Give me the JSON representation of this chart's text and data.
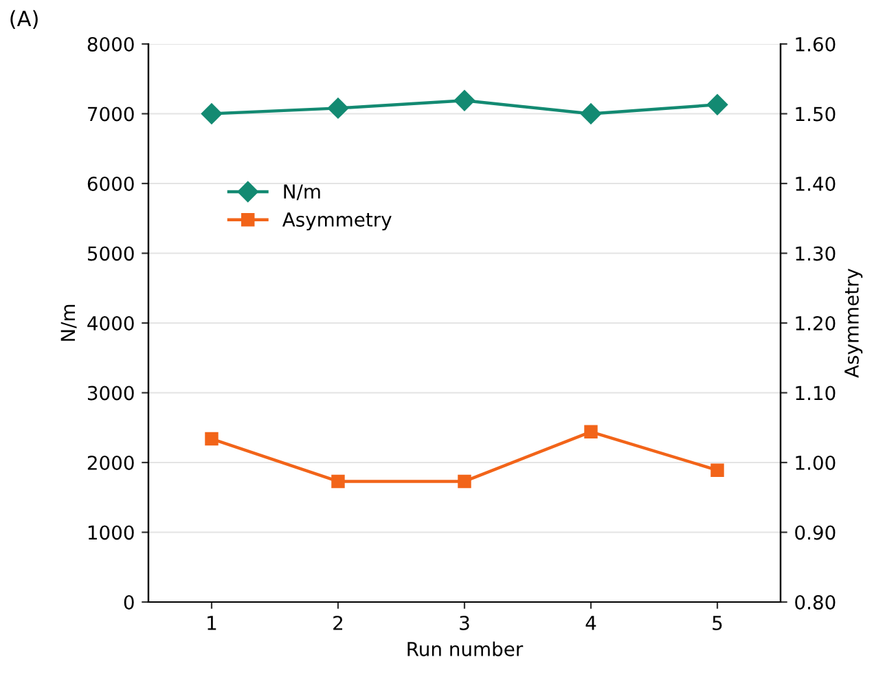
{
  "chart_data": {
    "type": "line",
    "title": "(A)",
    "xlabel": "Run number",
    "ylabel": "N/m",
    "y2label": "Asymmetry",
    "categories": [
      "1",
      "2",
      "3",
      "4",
      "5"
    ],
    "series": [
      {
        "name": "N/m",
        "color": "#138a72",
        "values": [
          7000,
          7080,
          7190,
          7000,
          7130
        ],
        "marker": "diamond"
      },
      {
        "name": "Asymmetry",
        "color": "#f26419",
        "values": [
          1.034,
          0.973,
          0.973,
          1.044,
          0.989
        ],
        "marker": "square",
        "axis": "y2"
      }
    ],
    "ylim": [
      0,
      8000
    ],
    "yticks": [
      0,
      1000,
      2000,
      3000,
      4000,
      5000,
      6000,
      7000,
      8000
    ],
    "y2lim": [
      0.8,
      1.6
    ],
    "y2ticks": [
      {
        "value": 0.8,
        "label": "0.80"
      },
      {
        "value": 0.9,
        "label": "0.90"
      },
      {
        "value": 1.0,
        "label": "1.00"
      },
      {
        "value": 1.1,
        "label": "1.10"
      },
      {
        "value": 1.2,
        "label": "1.20"
      },
      {
        "value": 1.3,
        "label": "1.30"
      },
      {
        "value": 1.4,
        "label": "1.40"
      },
      {
        "value": 1.5,
        "label": "1.50"
      },
      {
        "value": 1.6,
        "label": "1.60"
      }
    ],
    "grid": "y",
    "legend": "top left",
    "line_style": "solid"
  }
}
